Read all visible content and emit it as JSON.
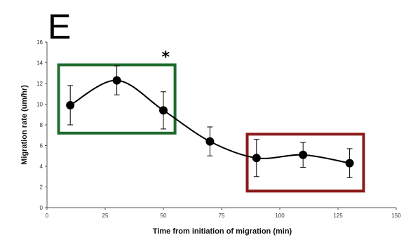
{
  "panel_label": "E",
  "chart_data": {
    "type": "line",
    "title": "",
    "xlabel": "Time from initiation of migration (min)",
    "ylabel": "Migration rate (um/hr)",
    "xlim": [
      0,
      150
    ],
    "ylim": [
      0,
      16
    ],
    "xticks": [
      0,
      25,
      50,
      75,
      100,
      125,
      150
    ],
    "yticks": [
      0,
      2,
      4,
      6,
      8,
      10,
      12,
      14,
      16
    ],
    "grid": false,
    "legend": "none",
    "series": [
      {
        "x": [
          10,
          30,
          50,
          70,
          90,
          110,
          130
        ],
        "y": [
          9.9,
          12.3,
          9.4,
          6.4,
          4.8,
          5.1,
          4.3
        ],
        "error": [
          1.9,
          1.4,
          1.8,
          1.4,
          1.8,
          1.2,
          1.4
        ],
        "color": "#000000",
        "smooth": true
      }
    ],
    "annotations": [
      {
        "type": "text",
        "text": "*",
        "x": 51,
        "y": 14.6
      }
    ],
    "highlight_boxes": [
      {
        "x_range": [
          5,
          55
        ],
        "y_range": [
          7.2,
          13.8
        ],
        "color": "#1f6b2e"
      },
      {
        "x_range": [
          86,
          136
        ],
        "y_range": [
          1.6,
          7.1
        ],
        "color": "#8b1a1a"
      }
    ]
  }
}
